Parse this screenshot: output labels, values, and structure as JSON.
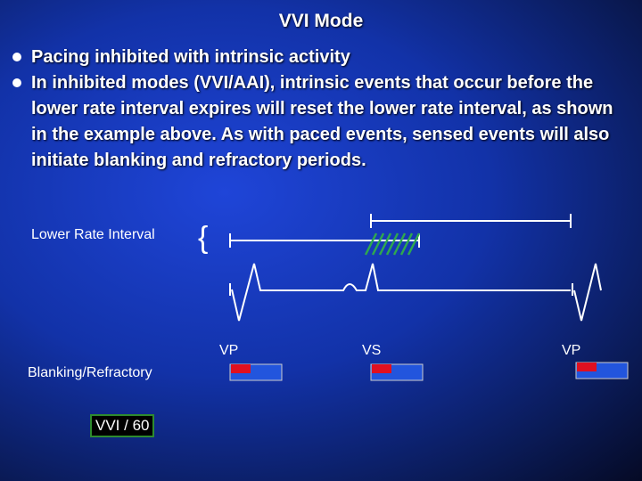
{
  "title": "VVI Mode",
  "bullets": [
    "Pacing inhibited with intrinsic activity",
    "In inhibited modes (VVI/AAI), intrinsic events that occur before the lower rate interval expires will reset the lower rate interval, as shown in the example above.  As with paced events, sensed events will also initiate blanking and refractory periods."
  ],
  "labels": {
    "lower_rate_interval": "Lower Rate Interval",
    "blanking": "Blanking/Refractory",
    "mode_box": "VVI / 60"
  },
  "events": [
    "VP",
    "VS",
    "VP"
  ]
}
